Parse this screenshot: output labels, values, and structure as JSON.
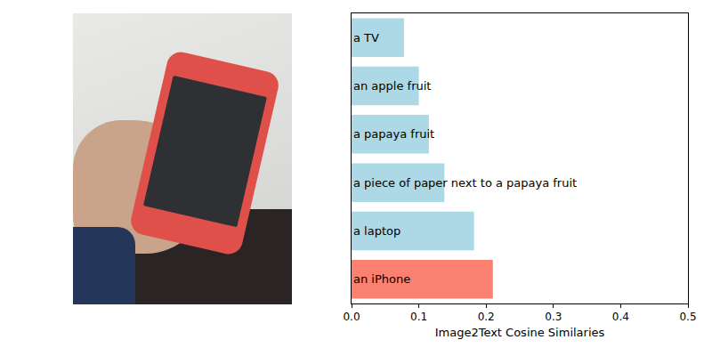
{
  "chart_data": {
    "type": "bar",
    "orientation": "horizontal",
    "categories": [
      "an iPhone",
      "a laptop",
      "a piece of paper next to a papaya fruit",
      "a papaya fruit",
      "an apple fruit",
      "a TV"
    ],
    "values": [
      0.21,
      0.182,
      0.138,
      0.115,
      0.1,
      0.078
    ],
    "colors": [
      "#fa8072",
      "#add8e6",
      "#add8e6",
      "#add8e6",
      "#add8e6",
      "#add8e6"
    ],
    "x_label": "Image2Text Cosine Similaries",
    "xlim": [
      0,
      0.5
    ],
    "xticks": [
      {
        "value": 0,
        "label": "0.0"
      },
      0.1,
      0.2,
      0.3,
      0.4,
      0.5
    ],
    "tick_labels": "x",
    "grid": false
  }
}
